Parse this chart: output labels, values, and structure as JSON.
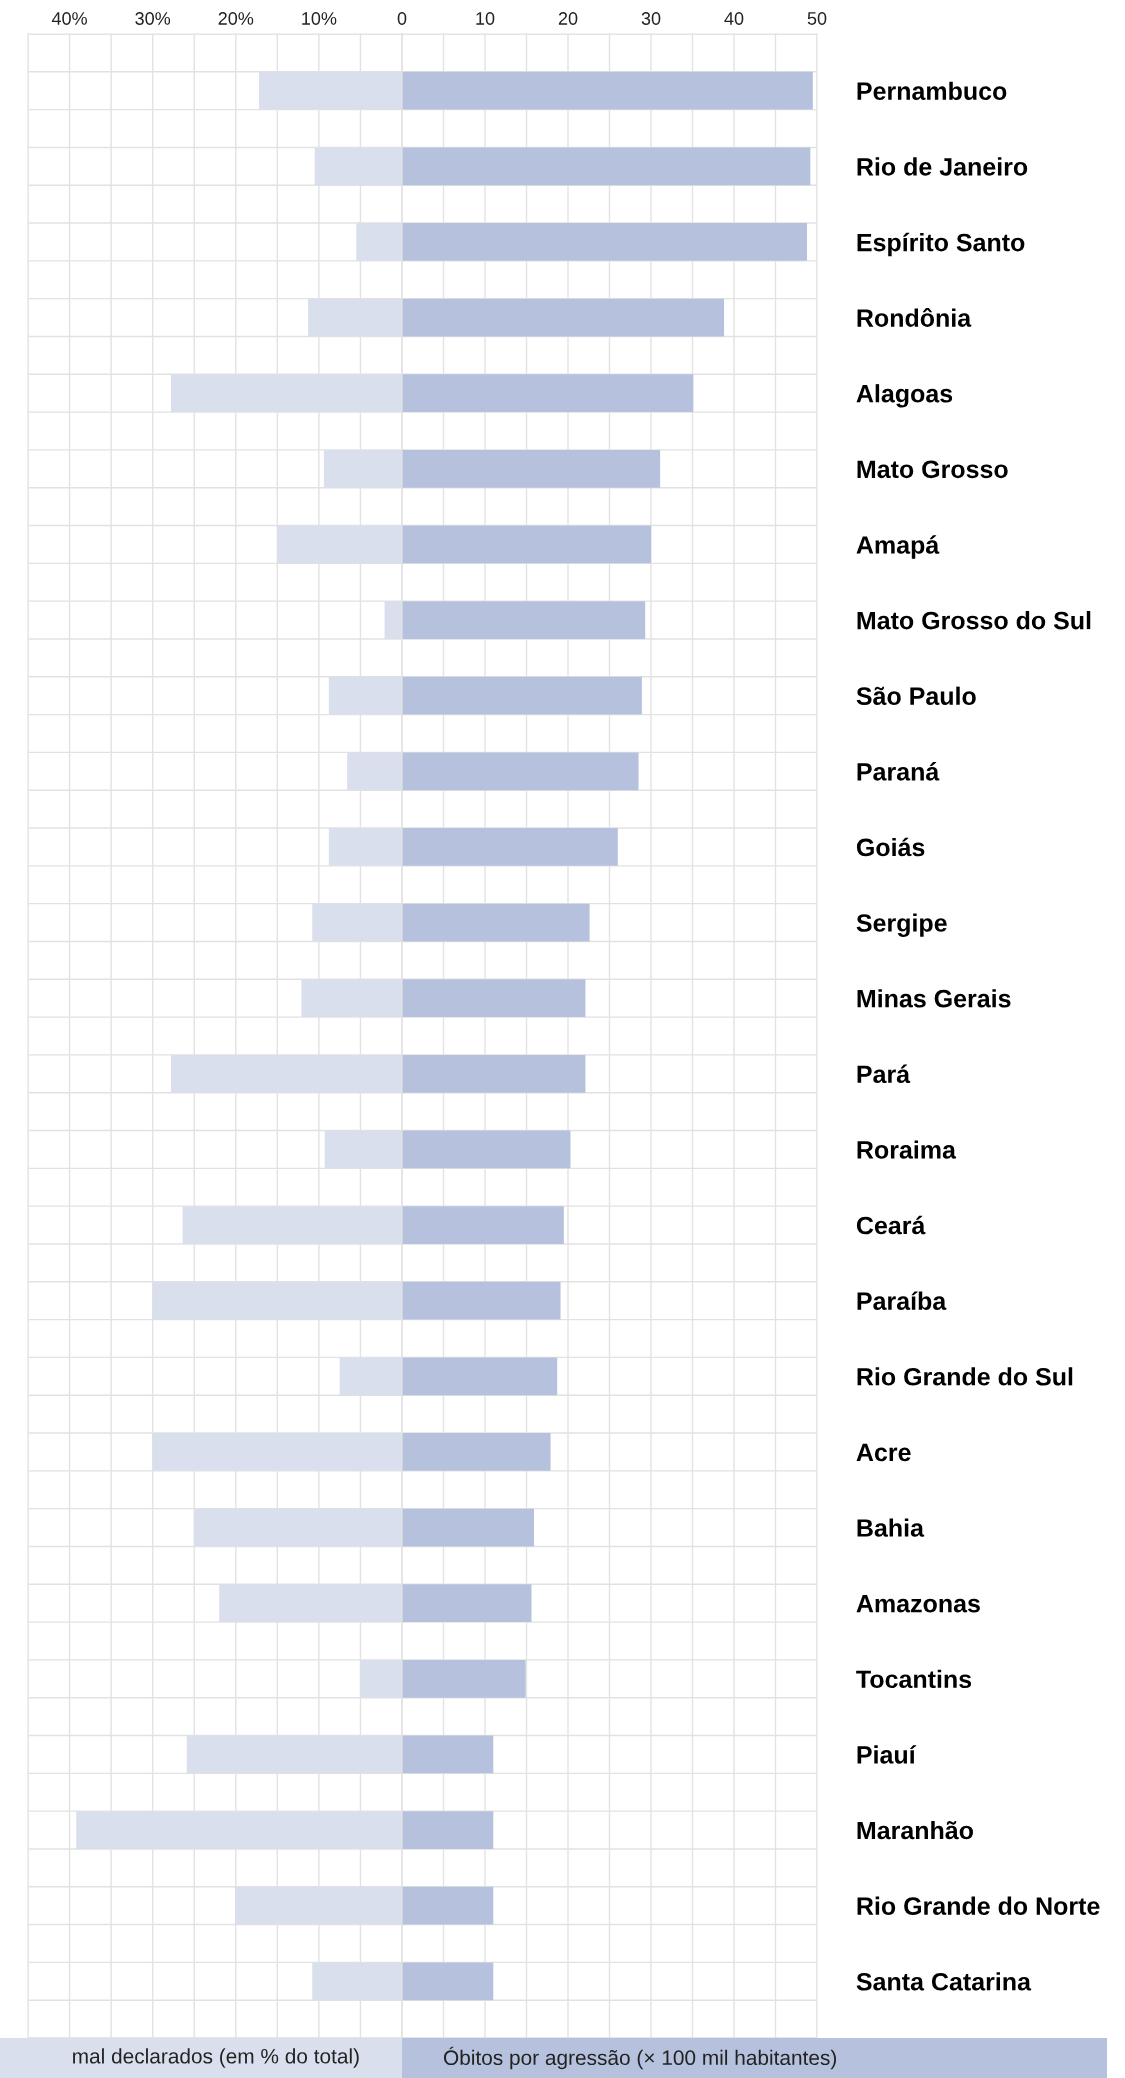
{
  "chart_data": [
    {
      "type": "bar",
      "orientation": "horizontal",
      "tick_labels": "x",
      "grid": true,
      "color": "#dadfed",
      "categories": [
        null,
        null,
        null,
        null,
        null,
        null,
        null,
        null,
        null,
        null,
        null,
        null,
        null,
        null,
        null,
        null,
        null,
        null,
        null,
        null,
        null,
        null,
        null,
        null,
        null,
        null
      ],
      "values": [
        17.2,
        10.5,
        5.5,
        11.3,
        27.8,
        9.4,
        15.0,
        2.1,
        8.8,
        6.6,
        8.8,
        10.8,
        12.1,
        27.8,
        9.3,
        26.4,
        30.0,
        7.5,
        30.0,
        25.0,
        22.0,
        5.0,
        25.9,
        39.2,
        20.1,
        10.8
      ],
      "xlim": [
        45,
        0
      ],
      "xticks": [
        {
          "value": 45,
          "label": null
        },
        {
          "value": 40,
          "label": "40%"
        },
        {
          "value": 35,
          "label": null
        },
        {
          "value": 30,
          "label": "30%"
        },
        {
          "value": 25,
          "label": null
        },
        {
          "value": 20,
          "label": "20%"
        },
        {
          "value": 15,
          "label": null
        },
        {
          "value": 10,
          "label": "10%"
        },
        {
          "value": 5,
          "label": null
        },
        {
          "value": 0,
          "label": null
        }
      ],
      "xlabel": "mal declarados (em % do total)"
    },
    {
      "type": "bar",
      "orientation": "horizontal",
      "grid": true,
      "color": "#b5c1dd",
      "categories": [
        "Pernambuco",
        "Rio de Janeiro",
        "Espírito Santo",
        "Rondônia",
        "Alagoas",
        "Mato Grosso",
        "Amapá",
        "Mato Grosso do Sul",
        "São Paulo",
        "Paraná",
        "Goiás",
        "Sergipe",
        "Minas Gerais",
        "Pará",
        "Roraima",
        "Ceará",
        "Paraíba",
        "Rio Grande do Sul",
        "Acre",
        "Bahia",
        "Amazonas",
        "Tocantins",
        "Piauí",
        "Maranhão",
        "Rio Grande do Norte",
        "Santa Catarina"
      ],
      "values": [
        49.5,
        49.2,
        48.8,
        38.8,
        35.1,
        31.1,
        30.0,
        29.3,
        28.9,
        28.5,
        26.0,
        22.6,
        22.1,
        22.1,
        20.3,
        19.5,
        19.1,
        18.7,
        17.9,
        15.9,
        15.6,
        14.9,
        11.0,
        11.0,
        11.0,
        11.0
      ],
      "xlim": [
        0,
        50
      ],
      "xticks": [
        0,
        {
          "value": 5,
          "label": null
        },
        10,
        {
          "value": 15,
          "label": null
        },
        20,
        {
          "value": 25,
          "label": null
        },
        30,
        {
          "value": 35,
          "label": null
        },
        40,
        {
          "value": 45,
          "label": null
        },
        50
      ],
      "xlabel": "Óbitos por agressão (× 100 mil habitantes)"
    }
  ]
}
